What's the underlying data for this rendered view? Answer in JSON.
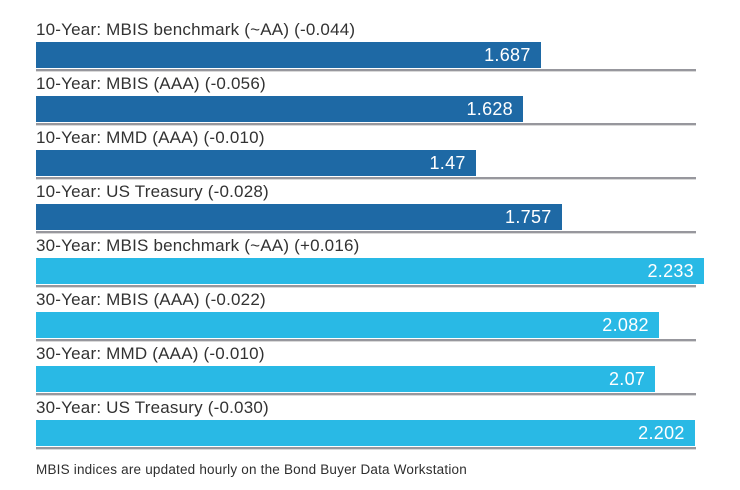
{
  "chart_data": {
    "type": "bar",
    "orientation": "horizontal",
    "title": "",
    "xlabel": "",
    "ylabel": "",
    "xlim": [
      0,
      2.233
    ],
    "grid": false,
    "legend": "none",
    "footnote": "MBIS indices are updated hourly on the Bond Buyer Data Workstation",
    "colors": {
      "ten_year": "#1e69a5",
      "thirty_year": "#29b9e5"
    },
    "separator_color": "#97979d",
    "value_text_color": "#ffffff",
    "label_text_color": "#323232",
    "rows": [
      {
        "label": "10-Year: MBIS benchmark (~AA) (-0.044)",
        "series": "10-Year",
        "index_name": "MBIS benchmark (~AA)",
        "change": -0.044,
        "value": 1.687,
        "display": "1.687",
        "group": "ten_year"
      },
      {
        "label": "10-Year: MBIS (AAA) (-0.056)",
        "series": "10-Year",
        "index_name": "MBIS (AAA)",
        "change": -0.056,
        "value": 1.628,
        "display": "1.628",
        "group": "ten_year"
      },
      {
        "label": "10-Year: MMD (AAA) (-0.010)",
        "series": "10-Year",
        "index_name": "MMD (AAA)",
        "change": -0.01,
        "value": 1.47,
        "display": "1.47",
        "group": "ten_year"
      },
      {
        "label": "10-Year: US Treasury (-0.028)",
        "series": "10-Year",
        "index_name": "US Treasury",
        "change": -0.028,
        "value": 1.757,
        "display": "1.757",
        "group": "ten_year"
      },
      {
        "label": "30-Year: MBIS benchmark (~AA) (+0.016)",
        "series": "30-Year",
        "index_name": "MBIS benchmark (~AA)",
        "change": 0.016,
        "value": 2.233,
        "display": "2.233",
        "group": "thirty_year"
      },
      {
        "label": "30-Year: MBIS (AAA) (-0.022)",
        "series": "30-Year",
        "index_name": "MBIS (AAA)",
        "change": -0.022,
        "value": 2.082,
        "display": "2.082",
        "group": "thirty_year"
      },
      {
        "label": "30-Year: MMD (AAA) (-0.010)",
        "series": "30-Year",
        "index_name": "MMD (AAA)",
        "change": -0.01,
        "value": 2.07,
        "display": "2.07",
        "group": "thirty_year"
      },
      {
        "label": "30-Year: US Treasury (-0.030)",
        "series": "30-Year",
        "index_name": "US Treasury",
        "change": -0.03,
        "value": 2.202,
        "display": "2.202",
        "group": "thirty_year"
      }
    ]
  }
}
